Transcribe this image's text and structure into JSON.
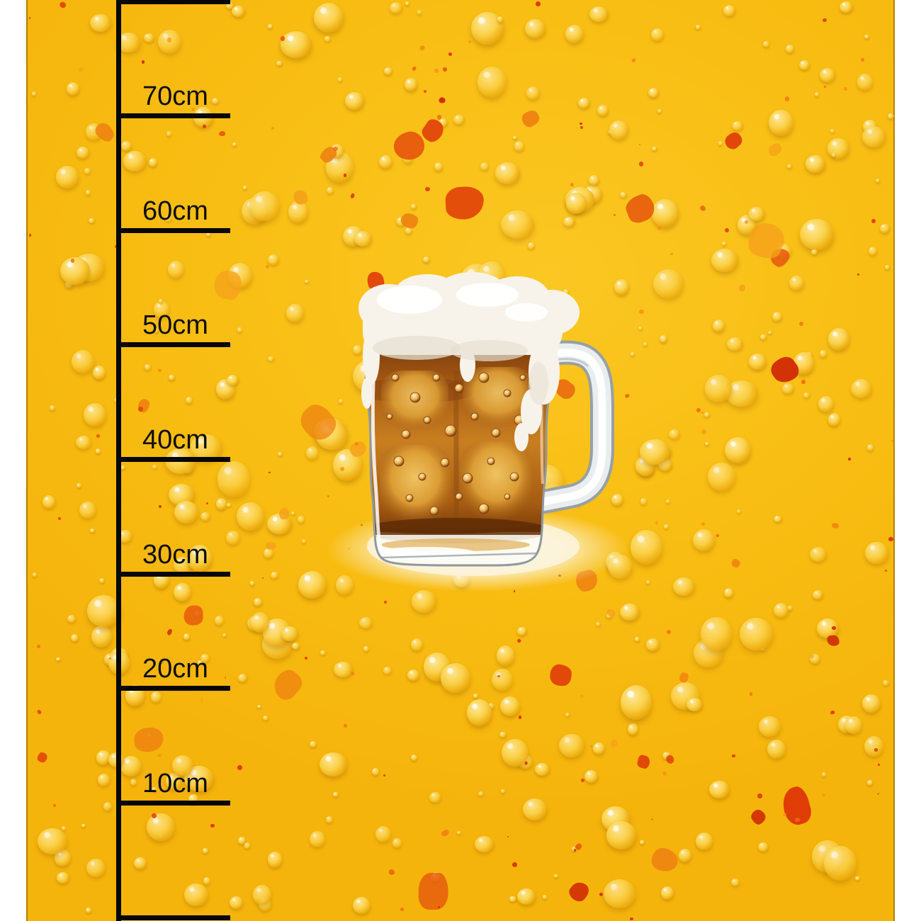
{
  "page": {
    "title": "Fabric panel preview with measuring ruler",
    "background_color": "#ffffff"
  },
  "panel": {
    "description": "golden yellow fabric covered with water drops and orange-red paint splatters",
    "motif": "watercolor beer mug with overflowing foam on a cream glow",
    "base_color": "#f8bd12",
    "drop_highlight_color": "#ffe9a0",
    "drop_shadow_color": "#cd9406",
    "splat_colors": [
      "#f5a21a",
      "#ee8210",
      "#e6570c",
      "#dd2f06",
      "#cf2402"
    ],
    "glow_color": "#fbf2d2"
  },
  "artwork": {
    "subject": "beer mug",
    "foam_color": "#f7f3ea",
    "beer_color": "#c87e20",
    "glass_color": "#96a0a5"
  },
  "ruler": {
    "unit": "cm",
    "color": "#070707",
    "marks": [
      {
        "cm": 80,
        "label": ""
      },
      {
        "cm": 70,
        "label": "70cm"
      },
      {
        "cm": 60,
        "label": "60cm"
      },
      {
        "cm": 50,
        "label": "50cm"
      },
      {
        "cm": 40,
        "label": "40cm"
      },
      {
        "cm": 30,
        "label": "30cm"
      },
      {
        "cm": 20,
        "label": "20cm"
      },
      {
        "cm": 10,
        "label": "10cm"
      },
      {
        "cm": 0,
        "label": ""
      }
    ]
  }
}
